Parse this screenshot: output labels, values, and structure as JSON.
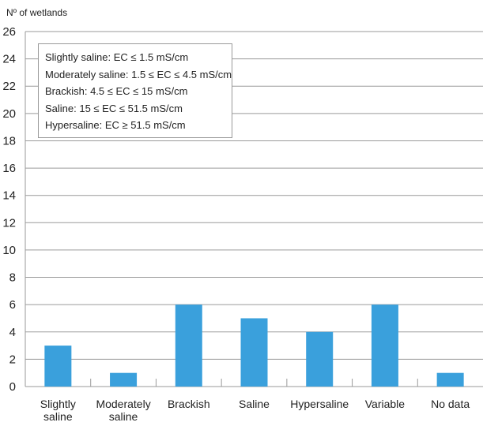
{
  "chart_data": {
    "type": "bar",
    "ylabel": "Nº of wetlands",
    "categories": [
      [
        "Slightly",
        "saline"
      ],
      [
        "Moderately",
        "saline"
      ],
      [
        "Brackish"
      ],
      [
        "Saline"
      ],
      [
        "Hypersaline"
      ],
      [
        "Variable"
      ],
      [
        "No data"
      ]
    ],
    "values": [
      3,
      1,
      6,
      5,
      4,
      6,
      1
    ],
    "ylim": [
      0,
      26
    ],
    "yticks": [
      0,
      2,
      4,
      6,
      8,
      10,
      12,
      14,
      16,
      18,
      20,
      22,
      24,
      26
    ],
    "grid": true,
    "legend_placement": "top-left",
    "legend_lines": [
      "Slightly saline: EC ≤ 1.5 mS/cm",
      "Moderately saline: 1.5 ≤ EC ≤ 4.5 mS/cm",
      "Brackish: 4.5 ≤ EC ≤ 15 mS/cm",
      "Saline: 15 ≤ EC ≤ 51.5 mS/cm",
      "Hypersaline: EC ≥ 51.5 mS/cm"
    ],
    "bar_color": "#3aa0dc",
    "grid_color": "#9a9a9a"
  }
}
